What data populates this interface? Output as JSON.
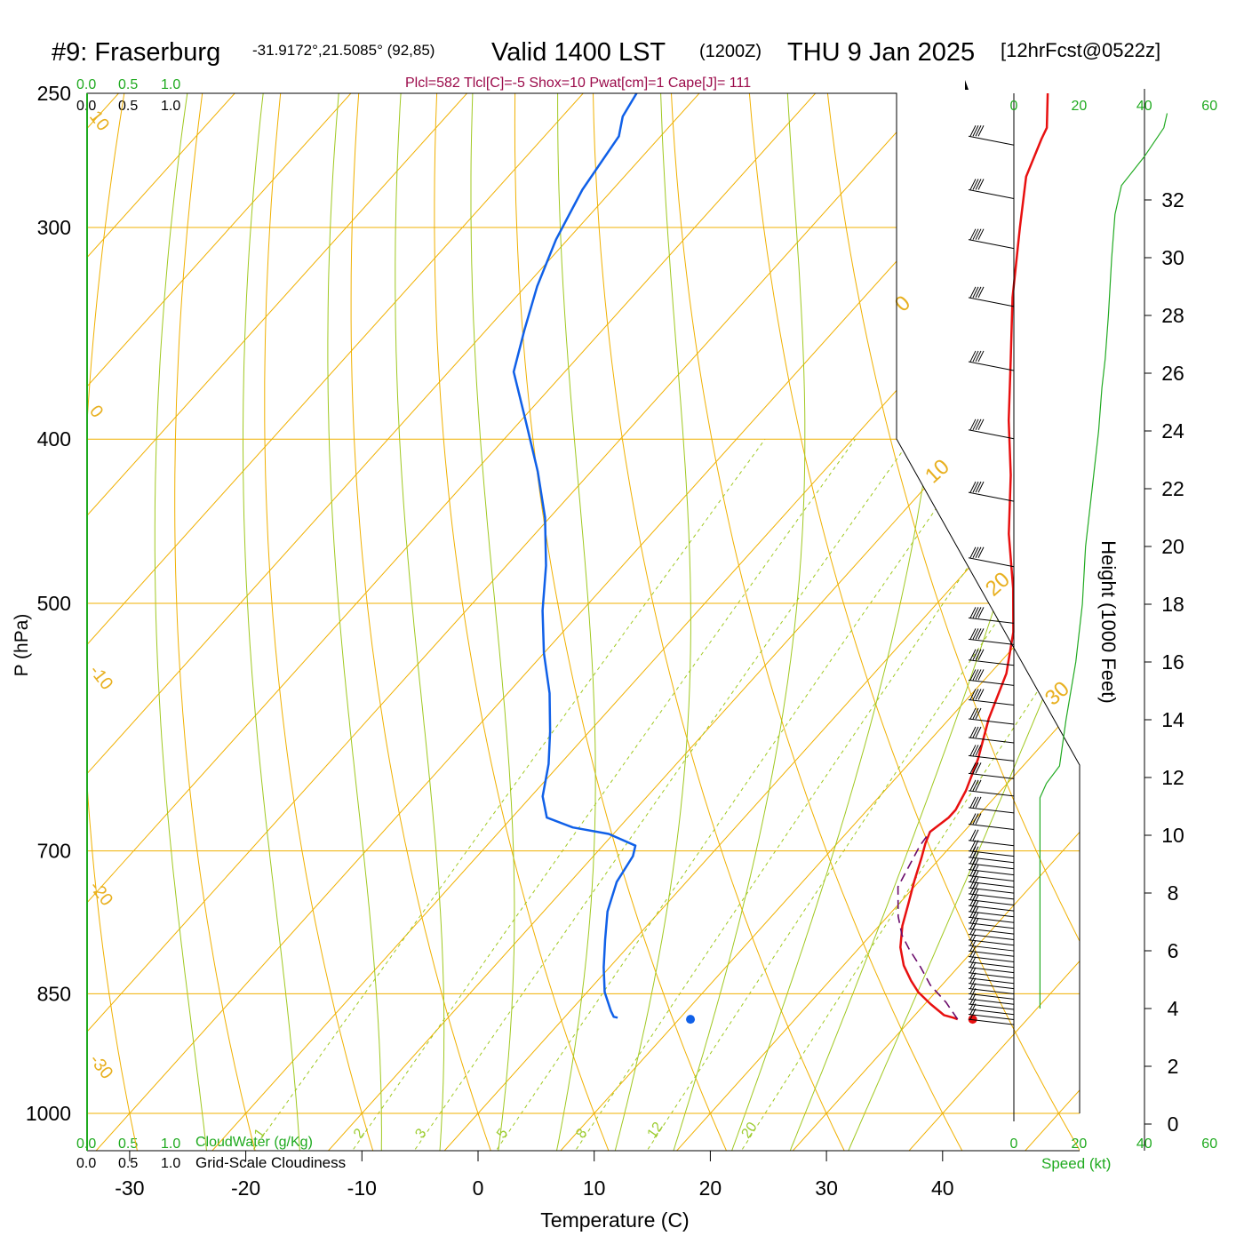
{
  "header": {
    "station": "#9: Fraserburg",
    "coords": "-31.9172°,21.5085° (92,85)",
    "valid_label": "Valid 1400 LST",
    "valid_utc": "(1200Z)",
    "valid_date": "THU 9 Jan 2025",
    "forecast": "[12hrFcst@0522z]"
  },
  "info_line": "Plcl=582 Tlcl[C]=-5 Shox=10 Pwat[cm]=1 Cape[J]= 111",
  "scales": {
    "top_green": [
      "0.0",
      "0.5",
      "1.0"
    ],
    "top_black": [
      "0.0",
      "0.5",
      "1.0"
    ],
    "bottom_green": [
      "0.0",
      "0.5",
      "1.0"
    ],
    "bottom_black": [
      "0.0",
      "0.5",
      "1.0"
    ],
    "cloudwater_label": "CloudWater (g/Kg)",
    "cloudiness_label": "Grid-Scale Cloudiness"
  },
  "speed_axis": {
    "ticks": [
      "0",
      "20",
      "40",
      "60"
    ],
    "label": "Speed (kt)"
  },
  "colors": {
    "isobar": "#f0b000",
    "isotherm": "#f0b000",
    "dry_adiabat": "#f0b000",
    "moist_adiabat": "#a0c820",
    "mixing_ratio": "#a0c820",
    "temperature": "#e81010",
    "dewpoint": "#1060e8",
    "speed": "#22aa22",
    "info": "#9b0a4a",
    "parcel": "#6a0a6a"
  },
  "chart_data": {
    "type": "line",
    "xlabel": "Temperature (C)",
    "ylabel": "P (hPa)",
    "y2label": "Height (1000 Feet)",
    "x_ticks": [
      "-30",
      "-20",
      "-10",
      "0",
      "10",
      "20",
      "30",
      "40"
    ],
    "y_ticks": [
      "250",
      "300",
      "400",
      "500",
      "700",
      "850",
      "1000"
    ],
    "height_ticks": [
      "0",
      "2",
      "4",
      "6",
      "8",
      "10",
      "12",
      "14",
      "16",
      "18",
      "20",
      "22",
      "24",
      "26",
      "28",
      "30",
      "32"
    ],
    "isotherm_labels": [
      "10",
      "0",
      "-10",
      "-20",
      "-30"
    ],
    "isotherm_labels_right": [
      "0",
      "10",
      "20",
      "30"
    ],
    "mixing_ratio_labels": [
      "1",
      "2",
      "3",
      "5",
      "8",
      "12",
      "20"
    ],
    "series": [
      {
        "name": "Temperature",
        "points": [
          [
            34.0,
            880
          ],
          [
            33.5,
            878
          ],
          [
            32.5,
            875
          ],
          [
            30.5,
            862
          ],
          [
            28.5,
            848
          ],
          [
            27.0,
            835
          ],
          [
            25.2,
            818
          ],
          [
            23.5,
            798
          ],
          [
            22.0,
            775
          ],
          [
            20.8,
            752
          ],
          [
            19.6,
            730
          ],
          [
            18.4,
            707
          ],
          [
            17.6,
            693
          ],
          [
            17.1,
            682
          ],
          [
            17.6,
            669
          ],
          [
            17.6,
            662
          ],
          [
            17.0,
            645
          ],
          [
            15.6,
            618
          ],
          [
            13.4,
            585
          ],
          [
            11.4,
            550
          ],
          [
            8.8,
            520
          ],
          [
            5.4,
            490
          ],
          [
            0.8,
            455
          ],
          [
            -3.6,
            420
          ],
          [
            -8.0,
            390
          ],
          [
            -12.4,
            360
          ],
          [
            -17.2,
            330
          ],
          [
            -22.0,
            300
          ],
          [
            -25.4,
            280
          ],
          [
            -27.0,
            266
          ],
          [
            -27.4,
            262
          ],
          [
            -30.0,
            250
          ]
        ]
      },
      {
        "name": "Dewpoint",
        "points": [
          [
            4.6,
            878
          ],
          [
            4.2,
            877
          ],
          [
            3.5,
            870
          ],
          [
            1.5,
            848
          ],
          [
            -0.5,
            820
          ],
          [
            -2.5,
            790
          ],
          [
            -4.5,
            760
          ],
          [
            -6.0,
            730
          ],
          [
            -6.6,
            705
          ],
          [
            -7.2,
            695
          ],
          [
            -10.4,
            684
          ],
          [
            -14.0,
            678
          ],
          [
            -17.0,
            669
          ],
          [
            -19.0,
            650
          ],
          [
            -21.0,
            622
          ],
          [
            -23.4,
            595
          ],
          [
            -26.4,
            565
          ],
          [
            -30.0,
            535
          ],
          [
            -33.4,
            505
          ],
          [
            -36.6,
            475
          ],
          [
            -40.4,
            445
          ],
          [
            -44.6,
            418
          ],
          [
            -49.6,
            390
          ],
          [
            -54.4,
            365
          ],
          [
            -56.7,
            345
          ],
          [
            -59.0,
            325
          ],
          [
            -61.0,
            305
          ],
          [
            -62.6,
            285
          ],
          [
            -63.6,
            265
          ],
          [
            -64.8,
            258
          ],
          [
            -65.4,
            250
          ]
        ]
      },
      {
        "name": "Parcel",
        "points": [
          [
            34.0,
            880
          ],
          [
            31.7,
            860
          ],
          [
            29.0,
            840
          ],
          [
            26.8,
            820
          ],
          [
            24.4,
            800
          ],
          [
            22.7,
            785
          ],
          [
            20.9,
            765
          ],
          [
            18.6,
            735
          ],
          [
            17.3,
            695
          ],
          [
            17.1,
            682
          ]
        ]
      }
    ],
    "surface_points": [
      {
        "label": "temperature",
        "temp": 35.3,
        "p": 880
      },
      {
        "label": "dewpoint",
        "temp": 11.0,
        "p": 880
      }
    ],
    "wind_speed_profile_kt": [
      [
        4.0,
        8
      ],
      [
        5.5,
        8
      ],
      [
        7.0,
        8
      ],
      [
        8.5,
        8
      ],
      [
        10.0,
        8
      ],
      [
        11.3,
        8
      ],
      [
        11.8,
        10
      ],
      [
        12.4,
        14
      ],
      [
        14.0,
        16
      ],
      [
        16.0,
        19
      ],
      [
        18.0,
        21
      ],
      [
        20.0,
        22
      ],
      [
        22.0,
        24
      ],
      [
        24.0,
        26
      ],
      [
        25.5,
        27
      ],
      [
        26.5,
        28
      ],
      [
        28.0,
        29
      ],
      [
        30.0,
        30
      ],
      [
        31.5,
        31
      ],
      [
        32.5,
        33
      ],
      [
        33.5,
        40
      ],
      [
        34.5,
        46
      ],
      [
        35.0,
        47
      ]
    ]
  }
}
